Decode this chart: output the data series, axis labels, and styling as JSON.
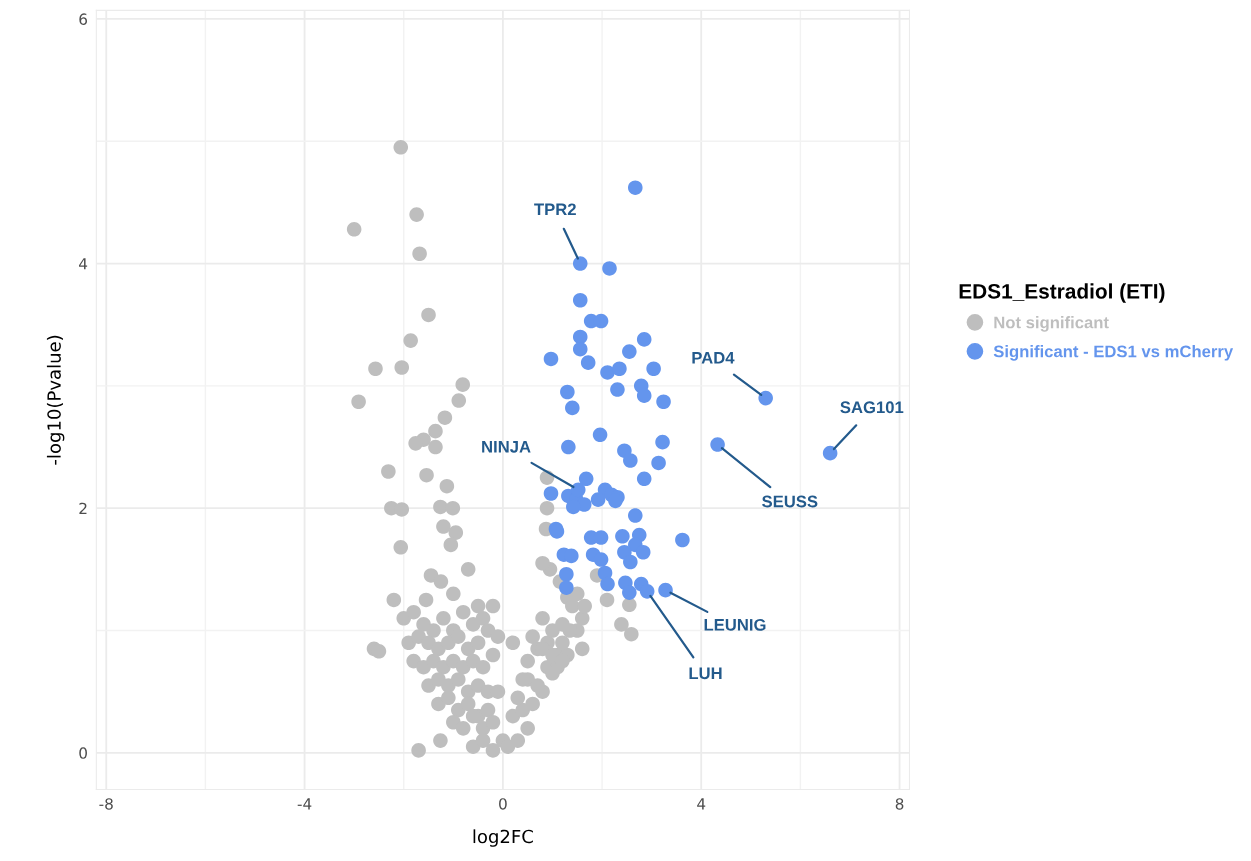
{
  "chart_data": {
    "type": "scatter",
    "xlabel": "log2FC",
    "ylabel": "-log10(Pvalue)",
    "legend_title": "EDS1_Estradiol (ETI)",
    "xlim": [
      -8.2,
      8.2
    ],
    "ylim": [
      -0.3,
      6.07
    ],
    "xticks": [
      -8,
      -4,
      0,
      4,
      8
    ],
    "yticks": [
      0,
      2,
      4,
      6
    ],
    "grid": true,
    "legend": "right",
    "marker": "circle",
    "series": [
      {
        "name": "Not significant",
        "color": "#bebebe",
        "x": [
          -2.06,
          -3.0,
          -1.74,
          -1.68,
          -1.5,
          -1.86,
          -2.57,
          -2.04,
          -0.81,
          -2.91,
          -0.89,
          -1.17,
          -1.36,
          -1.6,
          -1.76,
          -1.36,
          -2.31,
          -1.54,
          -2.25,
          -2.04,
          -1.26,
          -1.01,
          -1.13,
          -2.06,
          -1.7,
          -1.26,
          0.89,
          0.89,
          0.87,
          2.59,
          2.39,
          2.55,
          2.1,
          1.3,
          -1.2,
          -0.95,
          -1.05,
          -1.45,
          -1.25,
          -0.7,
          -1.55,
          -1.0,
          -0.5,
          -2.2,
          -2.6,
          -2.5,
          -2.0,
          -1.8,
          -1.6,
          -1.4,
          -1.2,
          -1.0,
          -0.8,
          -0.6,
          -0.4,
          -0.2,
          -1.9,
          -1.7,
          -1.5,
          -1.3,
          -1.1,
          -0.9,
          -0.7,
          -0.5,
          -0.3,
          -0.1,
          -1.8,
          -1.6,
          -1.4,
          -1.2,
          -1.0,
          -0.8,
          -0.6,
          -0.4,
          -0.2,
          -1.5,
          -1.3,
          -1.1,
          -0.9,
          -0.7,
          -0.5,
          -0.3,
          -1.3,
          -1.1,
          -0.9,
          -0.7,
          -0.5,
          -0.3,
          -0.1,
          -1.0,
          -0.8,
          -0.6,
          -0.4,
          -0.2,
          0.0,
          -0.6,
          -0.4,
          -0.2,
          0.1,
          0.3,
          0.5,
          0.2,
          0.4,
          0.6,
          0.8,
          0.3,
          0.5,
          0.7,
          0.9,
          1.1,
          0.5,
          0.7,
          0.9,
          1.1,
          1.3,
          0.6,
          0.8,
          1.0,
          1.2,
          1.5,
          0.8,
          1.0,
          1.2,
          1.4,
          1.0,
          1.2,
          1.6,
          1.35,
          1.6,
          1.9,
          0.95,
          1.15,
          0.8,
          1.5,
          1.65,
          0.2,
          0.4
        ],
        "values": [
          4.95,
          4.28,
          4.4,
          4.08,
          3.58,
          3.37,
          3.14,
          3.15,
          3.01,
          2.87,
          2.88,
          2.74,
          2.63,
          2.56,
          2.53,
          2.5,
          2.3,
          2.27,
          2.0,
          1.99,
          2.01,
          2.0,
          2.18,
          1.68,
          0.02,
          0.1,
          2.25,
          2.0,
          1.83,
          0.97,
          1.05,
          1.21,
          1.25,
          1.27,
          1.85,
          1.8,
          1.7,
          1.45,
          1.4,
          1.5,
          1.25,
          1.3,
          1.2,
          1.25,
          0.85,
          0.83,
          1.1,
          1.15,
          1.05,
          1.0,
          1.1,
          1.0,
          1.15,
          1.05,
          1.1,
          1.2,
          0.9,
          0.95,
          0.9,
          0.85,
          0.9,
          0.95,
          0.85,
          0.9,
          1.0,
          0.95,
          0.75,
          0.7,
          0.75,
          0.7,
          0.75,
          0.7,
          0.75,
          0.7,
          0.8,
          0.55,
          0.6,
          0.55,
          0.6,
          0.5,
          0.55,
          0.5,
          0.4,
          0.45,
          0.35,
          0.4,
          0.3,
          0.35,
          0.5,
          0.25,
          0.2,
          0.3,
          0.2,
          0.25,
          0.1,
          0.05,
          0.1,
          0.02,
          0.05,
          0.1,
          0.2,
          0.3,
          0.35,
          0.4,
          0.5,
          0.45,
          0.6,
          0.55,
          0.7,
          0.8,
          0.75,
          0.85,
          0.9,
          0.7,
          0.8,
          0.95,
          0.85,
          1.0,
          0.9,
          1.0,
          1.1,
          0.8,
          1.05,
          1.2,
          0.65,
          0.75,
          0.85,
          1.0,
          1.1,
          1.45,
          1.5,
          1.4,
          1.55,
          1.3,
          1.2,
          0.9,
          0.6
        ]
      },
      {
        "name": "Significant - EDS1 vs mCherry",
        "color": "#6495ed",
        "x": [
          2.67,
          1.56,
          2.15,
          1.56,
          1.78,
          1.98,
          1.56,
          2.85,
          1.56,
          2.55,
          0.97,
          1.72,
          3.04,
          2.11,
          2.35,
          2.79,
          2.31,
          2.85,
          3.24,
          1.3,
          1.4,
          5.3,
          1.96,
          1.32,
          3.22,
          2.45,
          2.57,
          3.14,
          4.33,
          6.6,
          2.85,
          1.68,
          0.97,
          1.32,
          2.06,
          2.19,
          2.31,
          1.48,
          1.52,
          1.64,
          1.42,
          1.92,
          2.27,
          2.67,
          1.07,
          1.09,
          3.62,
          1.78,
          1.98,
          2.41,
          2.75,
          2.67,
          1.23,
          1.38,
          1.82,
          1.98,
          2.45,
          2.83,
          2.57,
          1.28,
          2.06,
          1.28,
          2.11,
          2.47,
          2.79,
          2.55,
          3.28,
          2.91
        ],
        "values": [
          4.62,
          4.0,
          3.96,
          3.7,
          3.53,
          3.53,
          3.4,
          3.38,
          3.3,
          3.28,
          3.22,
          3.19,
          3.14,
          3.11,
          3.14,
          3.0,
          2.97,
          2.92,
          2.87,
          2.95,
          2.82,
          2.9,
          2.6,
          2.5,
          2.54,
          2.47,
          2.39,
          2.37,
          2.52,
          2.45,
          2.24,
          2.24,
          2.12,
          2.1,
          2.15,
          2.11,
          2.09,
          2.07,
          2.15,
          2.03,
          2.01,
          2.07,
          2.06,
          1.94,
          1.83,
          1.81,
          1.74,
          1.76,
          1.76,
          1.77,
          1.78,
          1.7,
          1.62,
          1.61,
          1.62,
          1.58,
          1.64,
          1.64,
          1.56,
          1.46,
          1.47,
          1.35,
          1.38,
          1.39,
          1.38,
          1.31,
          1.33,
          1.32
        ]
      }
    ],
    "annotations": [
      {
        "text": "TPR2",
        "x": 1.56,
        "y": 4.0
      },
      {
        "text": "PAD4",
        "x": 5.3,
        "y": 2.9
      },
      {
        "text": "SAG101",
        "x": 6.6,
        "y": 2.45
      },
      {
        "text": "SEUSS",
        "x": 4.33,
        "y": 2.52
      },
      {
        "text": "NINJA",
        "x": 1.52,
        "y": 2.15
      },
      {
        "text": "LEUNIG",
        "x": 3.28,
        "y": 1.33
      },
      {
        "text": "LUH",
        "x": 2.91,
        "y": 1.32
      }
    ]
  }
}
